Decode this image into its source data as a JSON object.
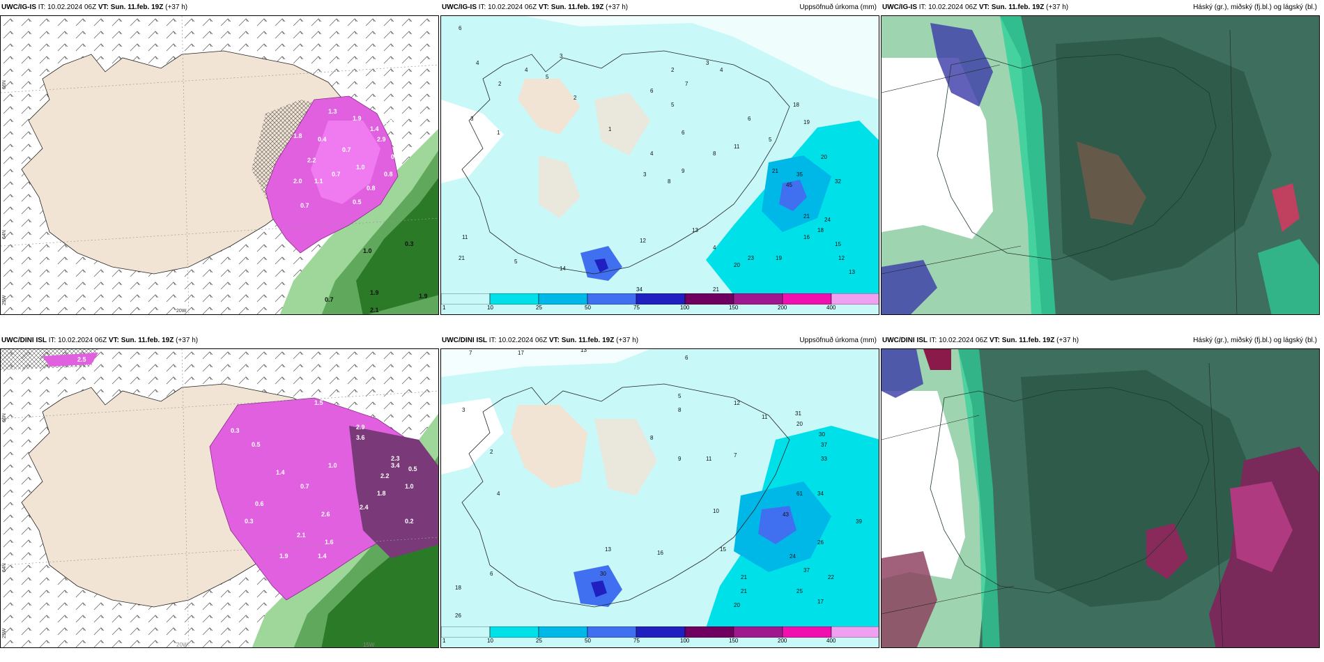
{
  "panels": [
    {
      "model": "UWC/IG-IS",
      "it_label": "IT:",
      "it": "10.02.2024 06Z",
      "vt_label": "VT:",
      "vt": "Sun. 11.feb. 19Z",
      "lead": "(+37 h)",
      "right_title": ""
    },
    {
      "model": "UWC/IG-IS",
      "it_label": "IT:",
      "it": "10.02.2024 06Z",
      "vt_label": "VT:",
      "vt": "Sun. 11.feb. 19Z",
      "lead": "(+37 h)",
      "right_title": "Uppsöfnuð úrkoma (mm)"
    },
    {
      "model": "UWC/IG-IS",
      "it_label": "IT:",
      "it": "10.02.2024 06Z",
      "vt_label": "VT:",
      "vt": "Sun. 11.feb. 19Z",
      "lead": "(+37 h)",
      "right_title": "Háský (gr.), miðský (fj.bl.) og lágský (bl.)"
    },
    {
      "model": "UWC/DINI ISL",
      "it_label": "IT:",
      "it": "10.02.2024 06Z",
      "vt_label": "VT:",
      "vt": "Sun. 11.feb. 19Z",
      "lead": "(+37 h)",
      "right_title": ""
    },
    {
      "model": "UWC/DINI ISL",
      "it_label": "IT:",
      "it": "10.02.2024 06Z",
      "vt_label": "VT:",
      "vt": "Sun. 11.feb. 19Z",
      "lead": "(+37 h)",
      "right_title": "Uppsöfnuð úrkoma (mm)"
    },
    {
      "model": "UWC/DINI ISL",
      "it_label": "IT:",
      "it": "10.02.2024 06Z",
      "vt_label": "VT:",
      "vt": "Sun. 11.feb. 19Z",
      "lead": "(+37 h)",
      "right_title": "Háský (gr.), miðský (fj.bl.) og lágský (bl.)"
    }
  ],
  "axis_labels": {
    "lat66": "66N",
    "lat64": "64N",
    "lon25": "25W",
    "lon20": "20W",
    "lon15": "15W"
  },
  "colorbar": {
    "ticks": [
      "1",
      "10",
      "25",
      "50",
      "75",
      "100",
      "150",
      "200",
      "400"
    ],
    "colors": [
      "#c8f8f8",
      "#00e0e8",
      "#00b8e8",
      "#4070f0",
      "#2020c0",
      "#700060",
      "#a01890",
      "#f010b0",
      "#f0a0f0"
    ]
  },
  "panel1_labels": [
    "1.3",
    "1.9",
    "2.9",
    "0.4",
    "0.7",
    "2.0",
    "1.1",
    "0.7",
    "1.0",
    "2.2",
    "0.8",
    "0.5",
    "0.8",
    "0.7",
    "1.8",
    "1.9",
    "1.4",
    "0.8",
    "1.9",
    "0.7",
    "1.0",
    "2.1",
    "1.9",
    "0.3"
  ],
  "panel2_labels": [
    "6",
    "4",
    "3",
    "2",
    "1",
    "4",
    "5",
    "3",
    "2",
    "1",
    "6",
    "2",
    "7",
    "3",
    "4",
    "5",
    "6",
    "8",
    "11",
    "3",
    "8",
    "9",
    "4",
    "6",
    "18",
    "19",
    "20",
    "5",
    "21",
    "45",
    "35",
    "32",
    "21",
    "24",
    "16",
    "18",
    "15",
    "12",
    "13",
    "19",
    "23",
    "20",
    "14",
    "11",
    "21",
    "13",
    "12",
    "4",
    "5",
    "34",
    "21"
  ],
  "panel4_labels": [
    "2.5",
    "1.5",
    "0.3",
    "0.5",
    "2.9",
    "3.6",
    "1.4",
    "0.7",
    "1.0",
    "2.6",
    "2.4",
    "0.6",
    "0.3",
    "0.2",
    "2.2",
    "1.6",
    "2.3",
    "1.0",
    "1.8",
    "2.1",
    "1.9",
    "1.4",
    "3.4",
    "0.5"
  ],
  "panel5_labels": [
    "7",
    "17",
    "13",
    "6",
    "8",
    "3",
    "2",
    "4",
    "5",
    "12",
    "11",
    "20",
    "31",
    "30",
    "37",
    "33",
    "8",
    "9",
    "11",
    "7",
    "61",
    "43",
    "34",
    "26",
    "39",
    "24",
    "22",
    "21",
    "37",
    "25",
    "17",
    "20",
    "15",
    "16",
    "13",
    "10",
    "18",
    "26",
    "6",
    "30",
    "21"
  ]
}
